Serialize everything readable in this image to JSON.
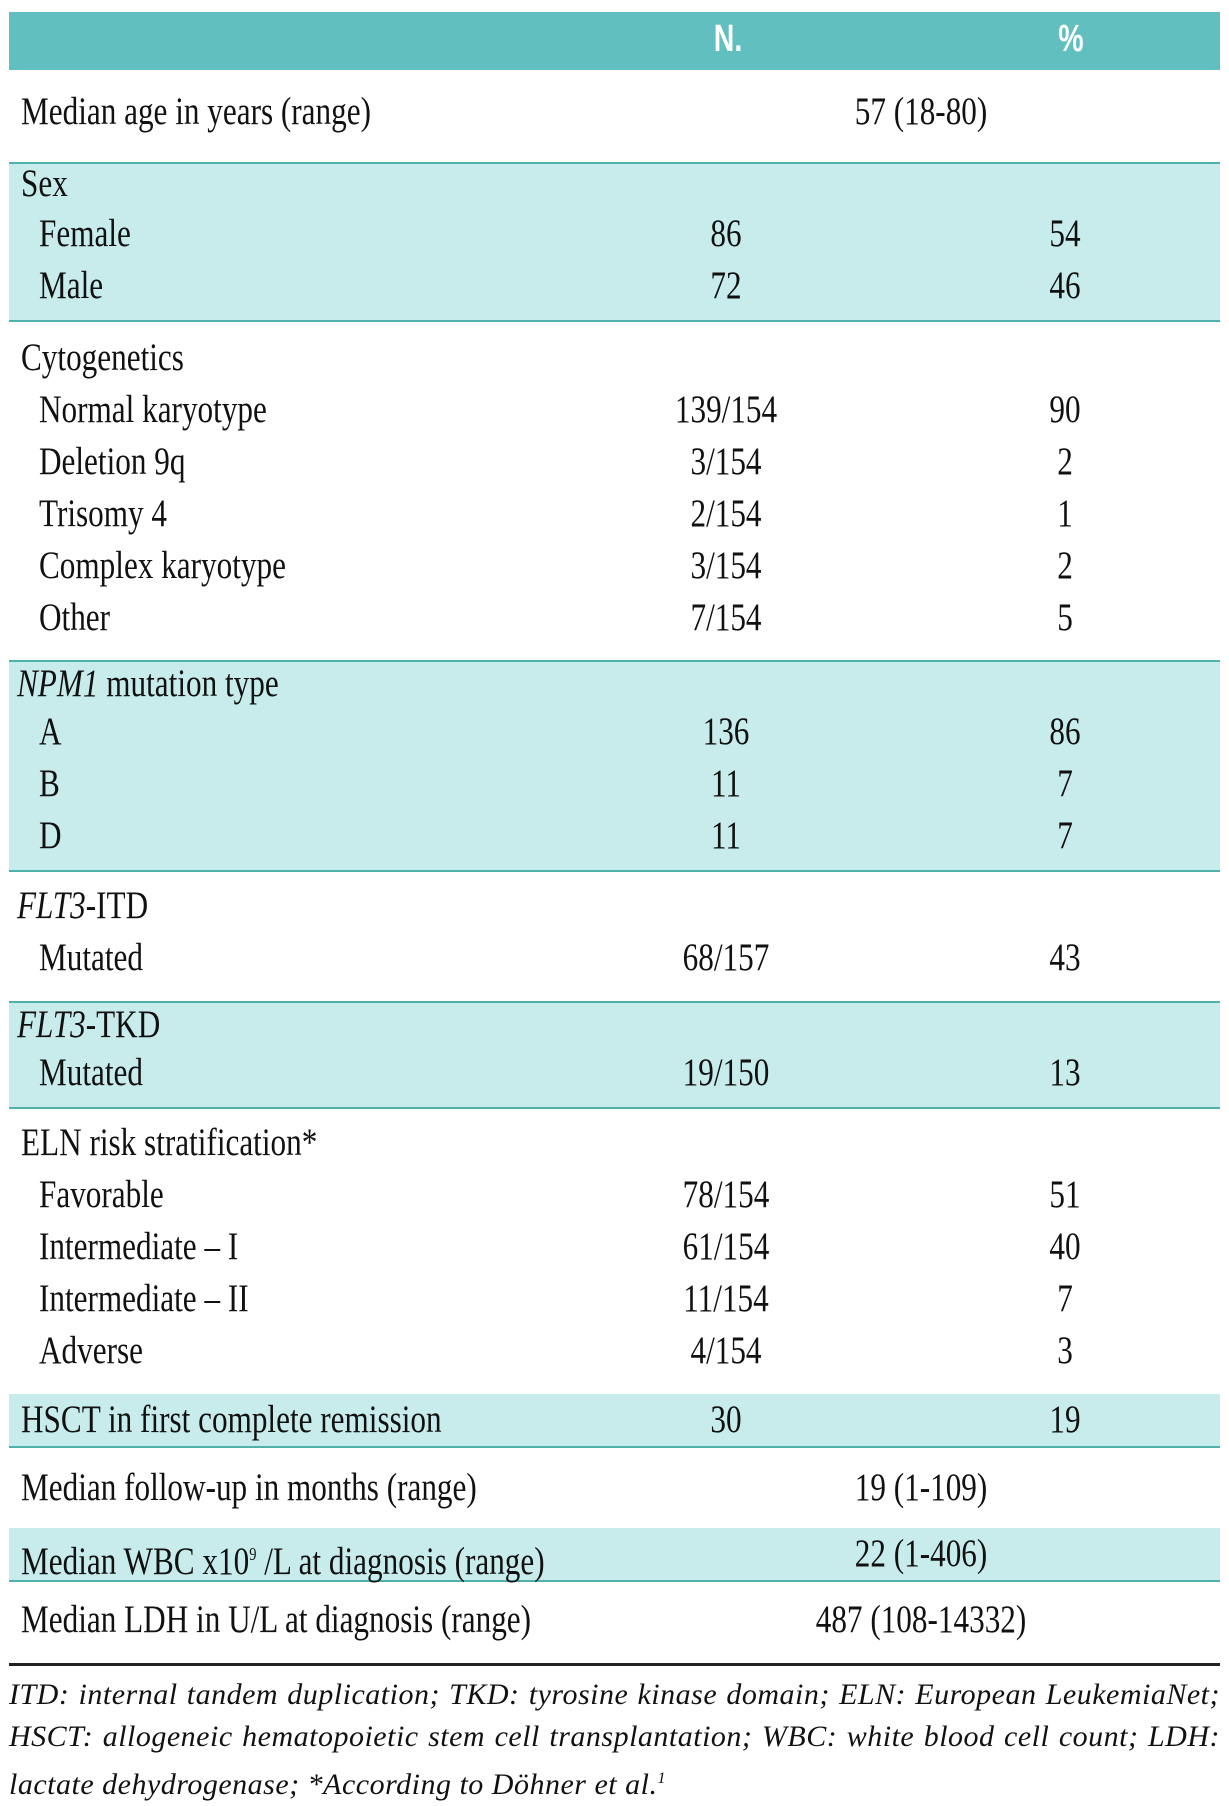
{
  "header": {
    "col_label": "",
    "col_n": "N.",
    "col_pct": "%"
  },
  "median_age": {
    "label": "Median age in years (range)",
    "value": "57 (18-80)"
  },
  "sex": {
    "title": "Sex",
    "rows": [
      {
        "label": "Female",
        "n": "86",
        "pct": "54"
      },
      {
        "label": "Male",
        "n": "72",
        "pct": "46"
      }
    ]
  },
  "cytogenetics": {
    "title": "Cytogenetics",
    "rows": [
      {
        "label": "Normal karyotype",
        "n": "139/154",
        "pct": "90"
      },
      {
        "label": "Deletion 9q",
        "n": "3/154",
        "pct": "2"
      },
      {
        "label": "Trisomy 4",
        "n": "2/154",
        "pct": "1"
      },
      {
        "label": "Complex karyotype",
        "n": "3/154",
        "pct": "2"
      },
      {
        "label": "Other",
        "n": "7/154",
        "pct": "5"
      }
    ]
  },
  "npm1": {
    "title_italic": "NPM1",
    "title_rest": " mutation type",
    "rows": [
      {
        "label": "A",
        "n": "136",
        "pct": "86"
      },
      {
        "label": "B",
        "n": "11",
        "pct": "7"
      },
      {
        "label": "D",
        "n": "11",
        "pct": "7"
      }
    ]
  },
  "flt3_itd": {
    "title_italic": "FLT3",
    "title_rest": "-ITD",
    "rows": [
      {
        "label": "Mutated",
        "n": "68/157",
        "pct": "43"
      }
    ]
  },
  "flt3_tkd": {
    "title_italic": "FLT3",
    "title_rest": "-TKD",
    "rows": [
      {
        "label": "Mutated",
        "n": "19/150",
        "pct": "13"
      }
    ]
  },
  "eln": {
    "title": "ELN risk stratification*",
    "rows": [
      {
        "label": "Favorable",
        "n": "78/154",
        "pct": "51"
      },
      {
        "label": "Intermediate – I",
        "n": "61/154",
        "pct": "40"
      },
      {
        "label": "Intermediate – II",
        "n": "11/154",
        "pct": "7"
      },
      {
        "label": "Adverse",
        "n": "4/154",
        "pct": "3"
      }
    ]
  },
  "hsct": {
    "label": "HSCT in first complete remission",
    "n": "30",
    "pct": "19"
  },
  "followup": {
    "label": "Median follow-up in months (range)",
    "value": "19 (1-109)"
  },
  "wbc": {
    "label_pre": "Median WBC x10",
    "label_sup": "9",
    "label_post": " /L at diagnosis (range)",
    "value": "22 (1-406)"
  },
  "ldh": {
    "label": "Median LDH in U/L at diagnosis (range)",
    "value": "487 (108-14332)"
  },
  "footnote": "ITD: internal tandem duplication; TKD: tyrosine kinase domain; ELN: European LeukemiaNet; HSCT: allogeneic hematopoietic stem cell transplantation; WBC: white blood cell count; LDH: lactate dehydrogenase; *According to Döhner et al.",
  "footnote_ref": "1",
  "colors": {
    "header": "#62bfbf",
    "shade": "#c8ecec",
    "rule": "#4fb0ac"
  }
}
